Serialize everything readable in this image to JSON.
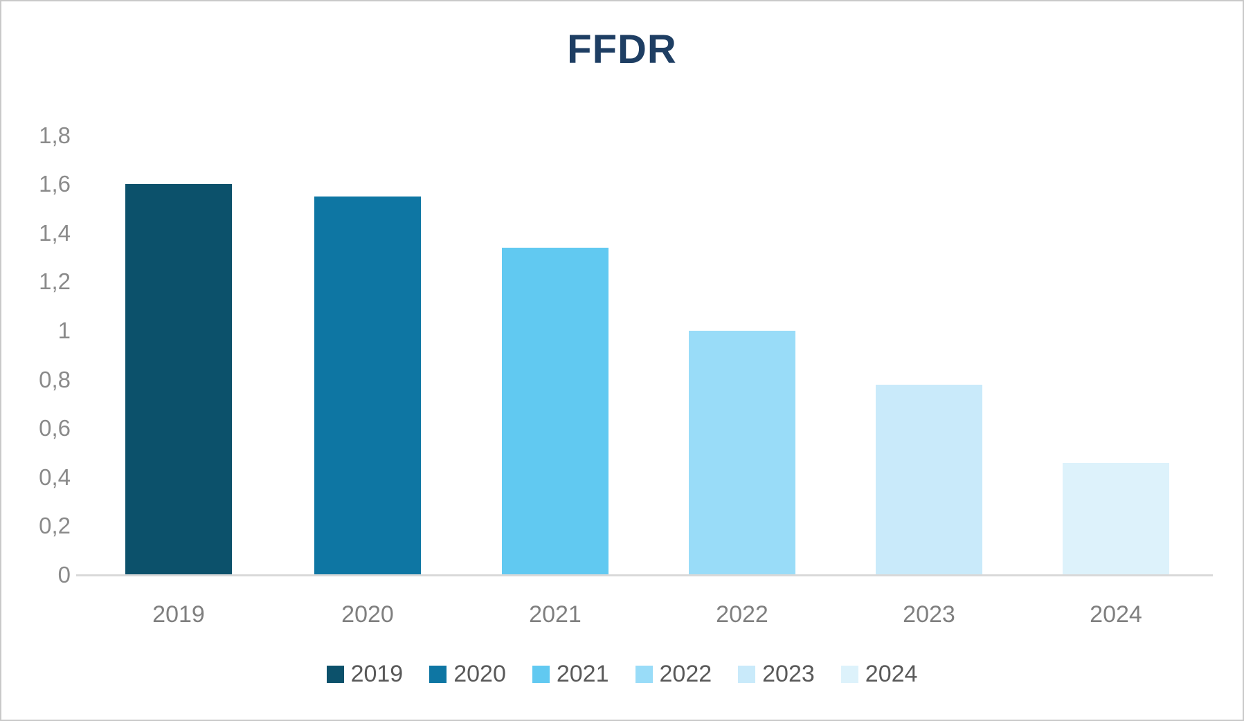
{
  "title": {
    "text": "FFDR"
  },
  "colors": {
    "background": "#FFFFFF",
    "frame_border": "#C9C9C9",
    "title_text": "#1E3E63",
    "axis_tick_text": "#8A8A8A",
    "category_text": "#7F7F7F",
    "legend_text": "#595959",
    "axis_line": "#D9D9D9"
  },
  "chart_data": {
    "type": "bar",
    "title": "FFDR",
    "categories": [
      "2019",
      "2020",
      "2021",
      "2022",
      "2023",
      "2024"
    ],
    "values": [
      1.6,
      1.55,
      1.34,
      1.0,
      0.78,
      0.46
    ],
    "bar_colors": [
      "#0C516B",
      "#0E76A3",
      "#61C9F1",
      "#99DCF8",
      "#C9EAFA",
      "#DDF2FB"
    ],
    "xlabel": "",
    "ylabel": "",
    "ylim": [
      0,
      1.8
    ],
    "ytick_step": 0.2,
    "decimal_separator": ",",
    "grid": false,
    "yticks": [
      {
        "label": "1,8",
        "value": 1.8
      },
      {
        "label": "1,6",
        "value": 1.6
      },
      {
        "label": "1,4",
        "value": 1.4
      },
      {
        "label": "1,2",
        "value": 1.2
      },
      {
        "label": "1",
        "value": 1.0
      },
      {
        "label": "0,8",
        "value": 0.8
      },
      {
        "label": "0,6",
        "value": 0.6
      },
      {
        "label": "0,4",
        "value": 0.4
      },
      {
        "label": "0,2",
        "value": 0.2
      },
      {
        "label": "0",
        "value": 0.0
      }
    ],
    "legend": {
      "position": "bottom",
      "entries": [
        "2019",
        "2020",
        "2021",
        "2022",
        "2023",
        "2024"
      ]
    }
  }
}
